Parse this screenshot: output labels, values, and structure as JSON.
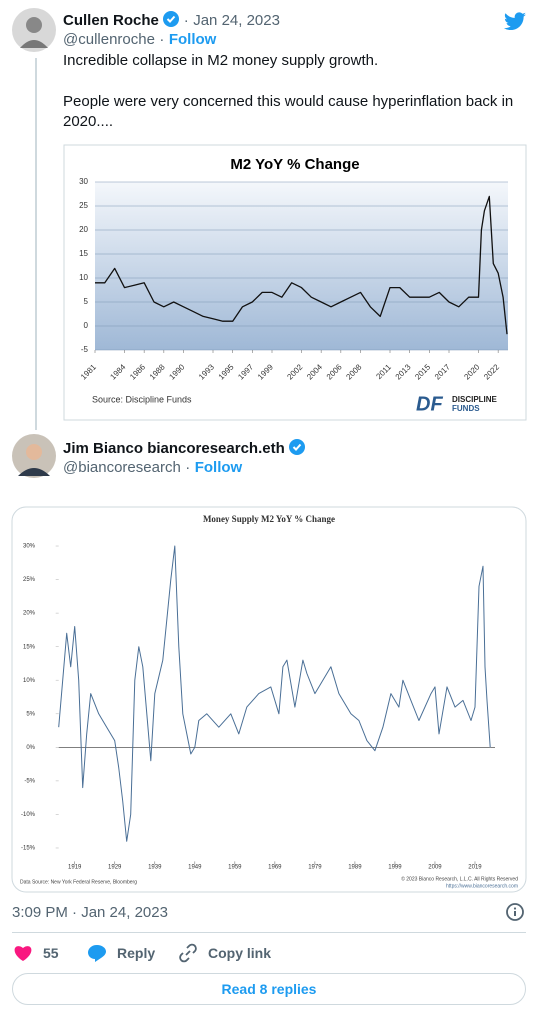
{
  "tweets": [
    {
      "author": "Cullen Roche",
      "handle": "@cullenroche",
      "separator": "·",
      "date": "Jan 24, 2023",
      "follow": "Follow",
      "text": [
        "Incredible collapse in M2 money supply growth.",
        "People were very concerned this would cause hyperinflation back in 2020...."
      ],
      "chart_data": {
        "type": "line",
        "title": "M2 YoY % Change",
        "source": "Source: Discipline Funds",
        "logo_mark": "DF",
        "logo": [
          "DISCIPLINE",
          "FUNDS"
        ],
        "x": [
          1981,
          1982,
          1983,
          1984,
          1985,
          1986,
          1987,
          1988,
          1989,
          1990,
          1991,
          1992,
          1993,
          1994,
          1995,
          1996,
          1997,
          1998,
          1999,
          2000,
          2001,
          2002,
          2003,
          2004,
          2005,
          2006,
          2007,
          2008,
          2009,
          2010,
          2011,
          2012,
          2013,
          2014,
          2015,
          2016,
          2017,
          2018,
          2019,
          2020,
          2020.3,
          2020.6,
          2021.1,
          2021.5,
          2022,
          2022.5,
          2022.9
        ],
        "series": [
          {
            "name": "M2 YoY % Change",
            "color": "#111111",
            "values": [
              9,
              9,
              12,
              8,
              8.5,
              9,
              5,
              4,
              5,
              4,
              3,
              2,
              1.5,
              1,
              1,
              4,
              5,
              7,
              7,
              6,
              9,
              8,
              6,
              5,
              4,
              5,
              6,
              7,
              4,
              2,
              8,
              8,
              6,
              6,
              6,
              7,
              5,
              4,
              6,
              6,
              20,
              24,
              27,
              13,
              11,
              6,
              -1.7
            ]
          }
        ],
        "xlim": [
          1981,
          2023
        ],
        "xticks": [
          1981,
          1984,
          1986,
          1988,
          1990,
          1993,
          1995,
          1997,
          1999,
          2002,
          2004,
          2006,
          2008,
          2011,
          2013,
          2015,
          2017,
          2020,
          2022
        ],
        "ylim": [
          -5,
          30
        ],
        "yticks": [
          -5,
          0,
          5,
          10,
          15,
          20,
          25,
          30
        ],
        "grid": true
      }
    },
    {
      "author": "Jim Bianco biancoresearch.eth",
      "handle": "@biancoresearch",
      "separator": "·",
      "follow": "Follow",
      "chart_data": {
        "type": "line",
        "title": "Money Supply M2 YoY % Change",
        "source": "Data Source: New York Federal Reserve, Bloomberg",
        "copyright": "© 2023 Bianco Research, L.L.C. All Rights Reserved",
        "url": "https://www.biancoresearch.com",
        "x": [
          1915,
          1917,
          1918,
          1919,
          1920,
          1921,
          1922,
          1923,
          1925,
          1927,
          1929,
          1930,
          1931,
          1932,
          1933,
          1934,
          1935,
          1936,
          1937,
          1938,
          1939,
          1941,
          1943,
          1944,
          1945,
          1946,
          1947,
          1948,
          1949,
          1950,
          1952,
          1955,
          1958,
          1960,
          1962,
          1965,
          1968,
          1970,
          1971,
          1972,
          1974,
          1976,
          1977,
          1979,
          1983,
          1985,
          1988,
          1990,
          1992,
          1994,
          1996,
          1998,
          2000,
          2001,
          2003,
          2005,
          2008,
          2009,
          2010,
          2012,
          2014,
          2016,
          2018,
          2019,
          2020,
          2021,
          2021.5,
          2022,
          2022.8
        ],
        "series": [
          {
            "name": "Money Supply M2 YoY % Change",
            "color": "#4a6f96",
            "values": [
              3,
              17,
              12,
              18,
              10,
              -6,
              2,
              8,
              5,
              3,
              1,
              -3,
              -8,
              -14,
              -10,
              10,
              15,
              12,
              5,
              -2,
              8,
              13,
              25,
              30,
              15,
              5,
              2,
              -1,
              0,
              4,
              5,
              3,
              5,
              2,
              6,
              8,
              9,
              5,
              12,
              13,
              6,
              13,
              11,
              8,
              12,
              8,
              5,
              4,
              1,
              -0.5,
              3,
              8,
              6,
              10,
              7,
              4,
              8,
              9,
              2,
              9,
              6,
              7,
              4,
              6,
              24,
              27,
              12,
              7,
              0
            ]
          }
        ],
        "xlim": [
          1915,
          2024
        ],
        "xticks": [
          1919,
          1929,
          1939,
          1949,
          1959,
          1969,
          1979,
          1989,
          1999,
          2009,
          2019
        ],
        "ylim": [
          -17,
          32
        ],
        "yticks": [
          {
            "value": -15,
            "label": "-15%"
          },
          {
            "value": -10,
            "label": "-10%"
          },
          {
            "value": -5,
            "label": "-5%"
          },
          {
            "value": 0,
            "label": "0%"
          },
          {
            "value": 5,
            "label": "5%"
          },
          {
            "value": 10,
            "label": "10%"
          },
          {
            "value": 15,
            "label": "15%"
          },
          {
            "value": 20,
            "label": "20%"
          },
          {
            "value": 25,
            "label": "25%"
          },
          {
            "value": 30,
            "label": "30%"
          }
        ],
        "grid": false
      },
      "timestamp": "3:09 PM · Jan 24, 2023",
      "likes": 55,
      "reply": "Reply",
      "copy_link": "Copy link",
      "read_replies": "Read 8 replies"
    }
  ]
}
